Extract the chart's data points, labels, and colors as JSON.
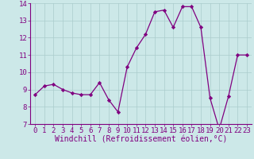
{
  "x": [
    0,
    1,
    2,
    3,
    4,
    5,
    6,
    7,
    8,
    9,
    10,
    11,
    12,
    13,
    14,
    15,
    16,
    17,
    18,
    19,
    20,
    21,
    22,
    23
  ],
  "y": [
    8.7,
    9.2,
    9.3,
    9.0,
    8.8,
    8.7,
    8.7,
    9.4,
    8.4,
    7.7,
    10.3,
    11.4,
    12.2,
    13.5,
    13.6,
    12.6,
    13.8,
    13.8,
    12.6,
    8.5,
    6.7,
    8.6,
    11.0,
    11.0
  ],
  "line_color": "#800080",
  "marker": "D",
  "marker_size": 2.2,
  "bg_color": "#cce8e8",
  "grid_color": "#aacccc",
  "xlabel": "Windchill (Refroidissement éolien,°C)",
  "xlabel_color": "#800080",
  "ylim": [
    7,
    14
  ],
  "xlim": [
    -0.5,
    23.5
  ],
  "yticks": [
    7,
    8,
    9,
    10,
    11,
    12,
    13,
    14
  ],
  "xticks": [
    0,
    1,
    2,
    3,
    4,
    5,
    6,
    7,
    8,
    9,
    10,
    11,
    12,
    13,
    14,
    15,
    16,
    17,
    18,
    19,
    20,
    21,
    22,
    23
  ],
  "tick_color": "#800080",
  "tick_fontsize": 6.5,
  "xlabel_fontsize": 7.0,
  "linewidth": 0.9
}
